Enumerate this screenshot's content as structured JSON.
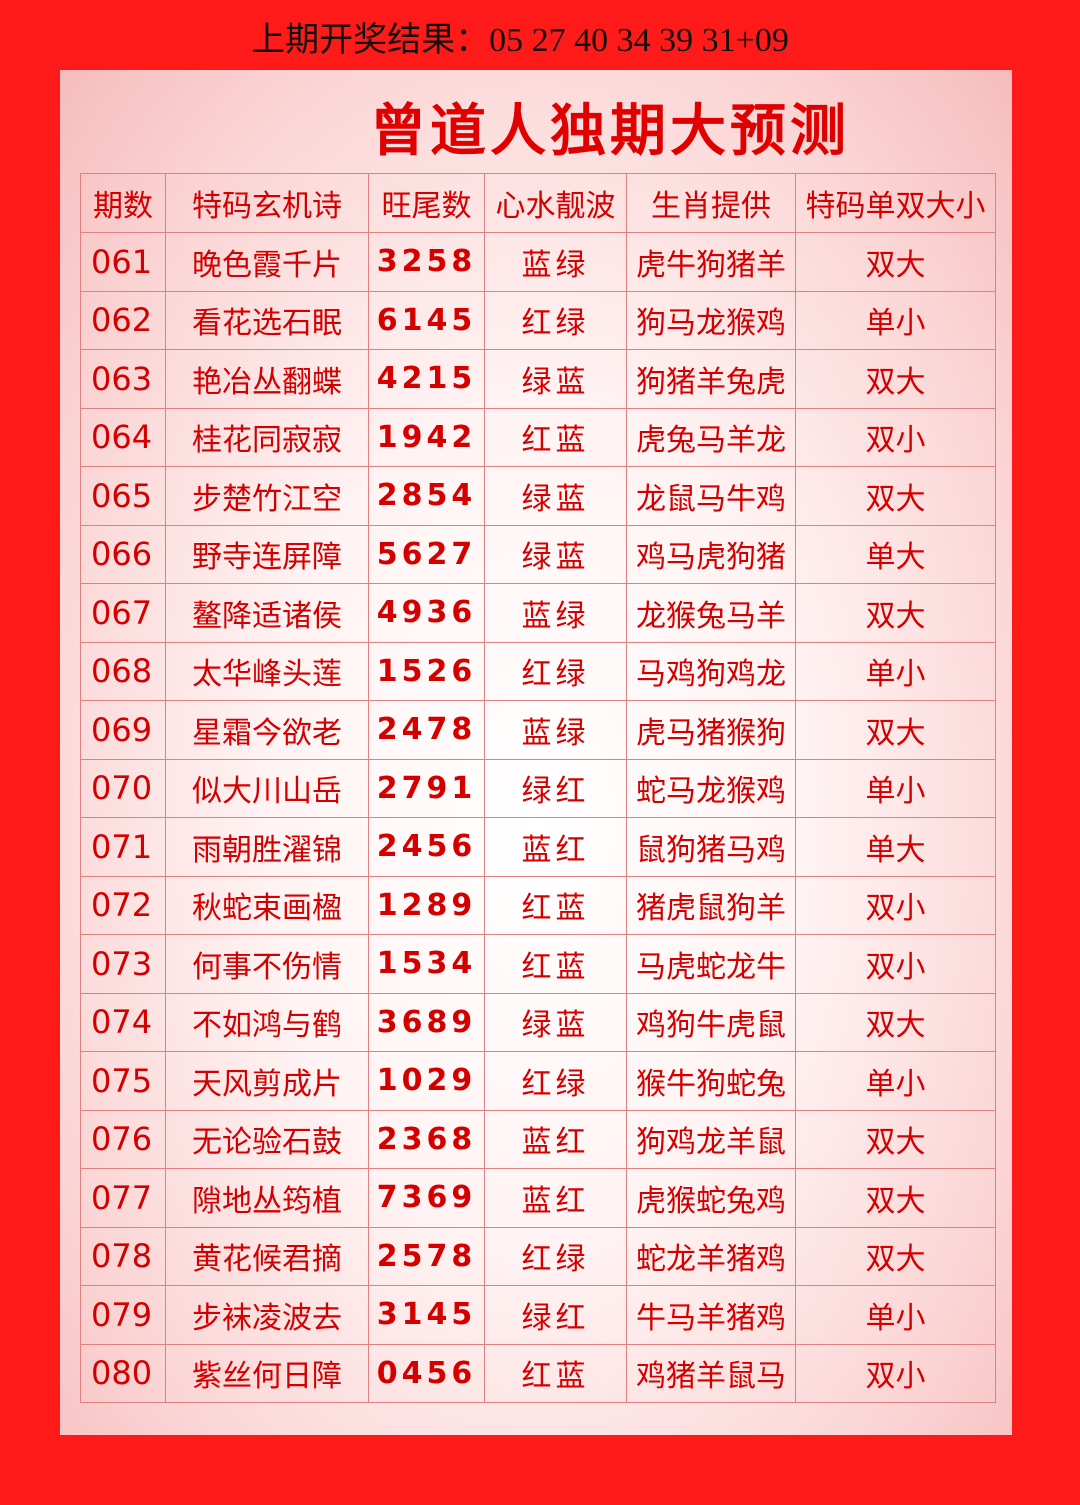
{
  "header": {
    "last_result": "上期开奖结果：05 27 40 34 39 31+09",
    "title": "曾道人独期大预测"
  },
  "table": {
    "columns": [
      "期数",
      "特码玄机诗",
      "旺尾数",
      "心水靓波",
      "生肖提供",
      "特码单双大小"
    ],
    "rows": [
      [
        "061",
        "晚色霞千片",
        "3258",
        "蓝绿",
        "虎牛狗猪羊",
        "双大"
      ],
      [
        "062",
        "看花选石眠",
        "6145",
        "红绿",
        "狗马龙猴鸡",
        "单小"
      ],
      [
        "063",
        "艳冶丛翻蝶",
        "4215",
        "绿蓝",
        "狗猪羊兔虎",
        "双大"
      ],
      [
        "064",
        "桂花同寂寂",
        "1942",
        "红蓝",
        "虎兔马羊龙",
        "双小"
      ],
      [
        "065",
        "步楚竹江空",
        "2854",
        "绿蓝",
        "龙鼠马牛鸡",
        "双大"
      ],
      [
        "066",
        "野寺连屏障",
        "5627",
        "绿蓝",
        "鸡马虎狗猪",
        "单大"
      ],
      [
        "067",
        "鳌降适诸侯",
        "4936",
        "蓝绿",
        "龙猴兔马羊",
        "双大"
      ],
      [
        "068",
        "太华峰头莲",
        "1526",
        "红绿",
        "马鸡狗鸡龙",
        "单小"
      ],
      [
        "069",
        "星霜今欲老",
        "2478",
        "蓝绿",
        "虎马猪猴狗",
        "双大"
      ],
      [
        "070",
        "似大川山岳",
        "2791",
        "绿红",
        "蛇马龙猴鸡",
        "单小"
      ],
      [
        "071",
        "雨朝胜濯锦",
        "2456",
        "蓝红",
        "鼠狗猪马鸡",
        "单大"
      ],
      [
        "072",
        "秋蛇束画楹",
        "1289",
        "红蓝",
        "猪虎鼠狗羊",
        "双小"
      ],
      [
        "073",
        "何事不伤情",
        "1534",
        "红蓝",
        "马虎蛇龙牛",
        "双小"
      ],
      [
        "074",
        "不如鸿与鹤",
        "3689",
        "绿蓝",
        "鸡狗牛虎鼠",
        "双大"
      ],
      [
        "075",
        "天风剪成片",
        "1029",
        "红绿",
        "猴牛狗蛇兔",
        "单小"
      ],
      [
        "076",
        "无论验石鼓",
        "2368",
        "蓝红",
        "狗鸡龙羊鼠",
        "双大"
      ],
      [
        "077",
        "隙地丛筠植",
        "7369",
        "蓝红",
        "虎猴蛇兔鸡",
        "双大"
      ],
      [
        "078",
        "黄花候君摘",
        "2578",
        "红绿",
        "蛇龙羊猪鸡",
        "双大"
      ],
      [
        "079",
        "步袜凌波去",
        "3145",
        "绿红",
        "牛马羊猪鸡",
        "单小"
      ],
      [
        "080",
        "紫丝何日障",
        "0456",
        "红蓝",
        "鸡猪羊鼠马",
        "双小"
      ]
    ]
  }
}
